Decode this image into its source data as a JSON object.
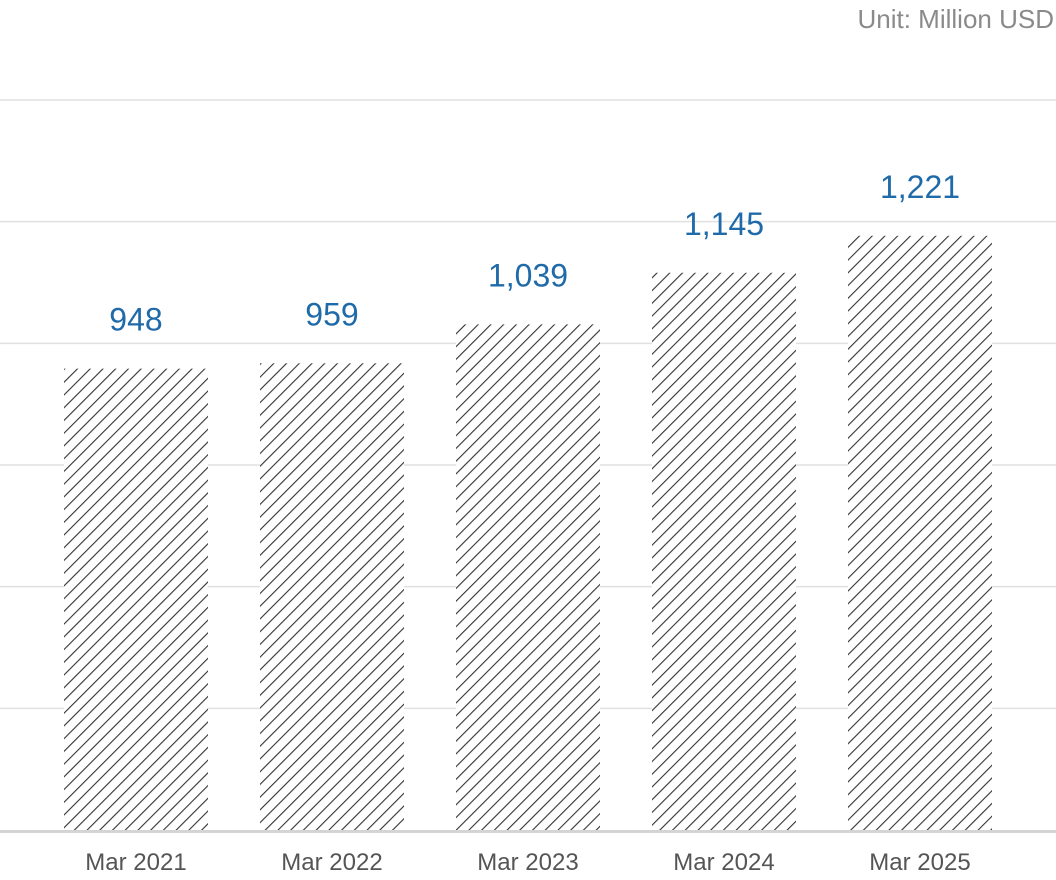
{
  "chart_data": {
    "type": "bar",
    "unit_label": "Unit: Million USD",
    "categories": [
      "Mar 2021",
      "Mar 2022",
      "Mar 2023",
      "Mar 2024",
      "Mar 2025"
    ],
    "values": [
      948,
      959,
      1039,
      1145,
      1221
    ],
    "value_labels": [
      "948",
      "959",
      "1,039",
      "1,145",
      "1,221"
    ],
    "ylim": [
      0,
      1500
    ],
    "grid": true,
    "bar_fill": "hatched",
    "colors": {
      "value_label": "#1f6aa8",
      "bar_hatch": "#333333",
      "gridline": "#e0e0e0",
      "baseline": "#d4d4d4",
      "tick_label": "#555555",
      "unit_label": "#8a8a8a"
    }
  }
}
